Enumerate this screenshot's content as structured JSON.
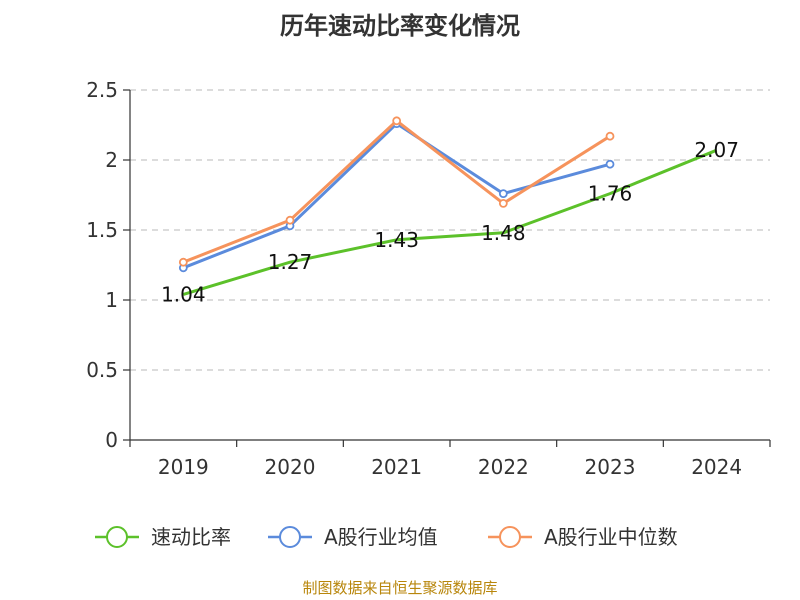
{
  "title": "历年速动比率变化情况",
  "source": "制图数据来自恒生聚源数据库",
  "chart_data": {
    "type": "line",
    "title": "历年速动比率变化情况",
    "categories": [
      "2019",
      "2020",
      "2021",
      "2022",
      "2023",
      "2024"
    ],
    "ylim": [
      0,
      2.5
    ],
    "yticks": [
      "0",
      "0.5",
      "1",
      "1.5",
      "2",
      "2.5"
    ],
    "grid": true,
    "legend_position": "bottom",
    "series": [
      {
        "name": "速动比率",
        "color": "#5cc12a",
        "values": [
          1.04,
          1.27,
          1.43,
          1.48,
          1.76,
          2.07
        ],
        "labels": [
          "1.04",
          "1.27",
          "1.43",
          "1.48",
          "1.76",
          "2.07"
        ],
        "markers": false
      },
      {
        "name": "A股行业均值",
        "color": "#5b8bdc",
        "values": [
          1.23,
          1.53,
          2.26,
          1.76,
          1.97,
          null
        ],
        "markers": true
      },
      {
        "name": "A股行业中位数",
        "color": "#f6935c",
        "values": [
          1.27,
          1.57,
          2.28,
          1.69,
          2.17,
          null
        ],
        "markers": true
      }
    ]
  }
}
